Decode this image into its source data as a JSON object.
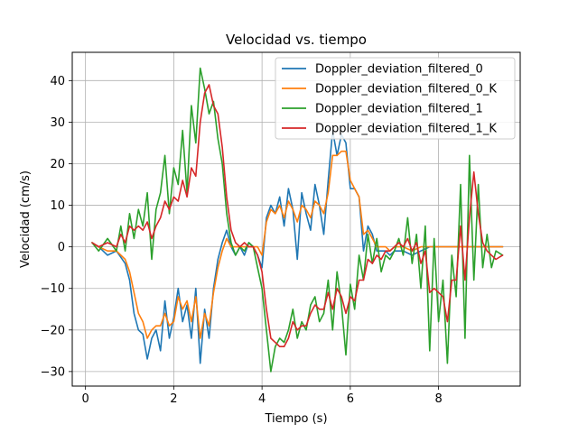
{
  "chart_data": {
    "type": "line",
    "title": "Velocidad vs. tiempo",
    "xlabel": "Tiempo (s)",
    "ylabel": "Velocidad (cm/s)",
    "xlim": [
      -0.3,
      9.85
    ],
    "ylim": [
      -33.5,
      46.8
    ],
    "xticks": [
      0,
      2,
      4,
      6,
      8
    ],
    "yticks": [
      -30,
      -20,
      -10,
      0,
      10,
      20,
      30,
      40
    ],
    "grid": true,
    "legend_position": "top-right",
    "colors": [
      "#1f77b4",
      "#ff7f0e",
      "#2ca02c",
      "#d62728"
    ],
    "series": [
      {
        "name": "Doppler_deviation_filtered_0",
        "color": "#1f77b4",
        "x": [
          0.15,
          0.3,
          0.5,
          0.7,
          0.9,
          1.0,
          1.1,
          1.2,
          1.3,
          1.4,
          1.5,
          1.6,
          1.7,
          1.8,
          1.9,
          2.0,
          2.1,
          2.2,
          2.3,
          2.4,
          2.5,
          2.6,
          2.7,
          2.8,
          2.9,
          3.0,
          3.1,
          3.2,
          3.3,
          3.4,
          3.5,
          3.6,
          3.7,
          3.8,
          3.9,
          4.0,
          4.1,
          4.2,
          4.3,
          4.4,
          4.5,
          4.6,
          4.7,
          4.8,
          4.9,
          5.0,
          5.1,
          5.2,
          5.3,
          5.4,
          5.5,
          5.6,
          5.7,
          5.8,
          5.9,
          6.0,
          6.1,
          6.2,
          6.3,
          6.4,
          6.5,
          6.6,
          6.7,
          6.8,
          6.9,
          7.0,
          7.2,
          7.4,
          7.6,
          7.8,
          8.0,
          8.2,
          8.4,
          8.6,
          8.8,
          9.0,
          9.2,
          9.45
        ],
        "y": [
          1,
          0,
          -2,
          -1,
          -4,
          -8,
          -16,
          -20,
          -21,
          -27,
          -22,
          -20,
          -25,
          -13,
          -22,
          -17,
          -10,
          -18,
          -14,
          -22,
          -10,
          -28,
          -15,
          -22,
          -10,
          -3,
          1,
          4,
          0,
          -2,
          0,
          -2,
          1,
          0,
          -2,
          -5,
          7,
          10,
          8,
          12,
          5,
          14,
          9,
          -3,
          13,
          8,
          4,
          15,
          10,
          3,
          16,
          28,
          22,
          27,
          25,
          14,
          14,
          12,
          -1,
          5,
          3,
          -1,
          -1,
          -1,
          -2,
          -1,
          -1,
          -2,
          -1,
          0,
          0,
          0,
          0,
          0,
          0,
          0,
          0,
          0
        ]
      },
      {
        "name": "Doppler_deviation_filtered_0_K",
        "color": "#ff7f0e",
        "x": [
          0.15,
          0.3,
          0.5,
          0.7,
          0.9,
          1.0,
          1.1,
          1.2,
          1.3,
          1.4,
          1.5,
          1.6,
          1.7,
          1.8,
          1.9,
          2.0,
          2.1,
          2.2,
          2.3,
          2.4,
          2.5,
          2.6,
          2.7,
          2.8,
          2.9,
          3.0,
          3.1,
          3.2,
          3.3,
          3.4,
          3.5,
          3.6,
          3.7,
          3.8,
          3.9,
          4.0,
          4.1,
          4.2,
          4.3,
          4.4,
          4.5,
          4.6,
          4.7,
          4.8,
          4.9,
          5.0,
          5.1,
          5.2,
          5.3,
          5.4,
          5.5,
          5.6,
          5.7,
          5.8,
          5.9,
          6.0,
          6.1,
          6.2,
          6.3,
          6.4,
          6.5,
          6.6,
          6.7,
          6.8,
          6.9,
          7.0,
          7.2,
          7.4,
          7.6,
          7.8,
          8.0,
          8.2,
          8.4,
          8.6,
          8.8,
          9.0,
          9.2,
          9.45
        ],
        "y": [
          1,
          0,
          -1,
          -1,
          -3,
          -6,
          -11,
          -16,
          -18,
          -22,
          -20,
          -19,
          -19,
          -16,
          -19,
          -18,
          -12,
          -15,
          -13,
          -18,
          -12,
          -22,
          -16,
          -19,
          -11,
          -5,
          -1,
          2,
          0,
          0,
          0,
          0,
          0,
          0,
          0,
          -2,
          6,
          9,
          8,
          10,
          7,
          11,
          9,
          6,
          10,
          9,
          7,
          11,
          10,
          8,
          13,
          22,
          22,
          23,
          23,
          16,
          14,
          12,
          3,
          4,
          2,
          0,
          0,
          0,
          -1,
          0,
          0,
          -1,
          0,
          0,
          0,
          0,
          0,
          0,
          0,
          0,
          0,
          0
        ]
      },
      {
        "name": "Doppler_deviation_filtered_1",
        "color": "#2ca02c",
        "x": [
          0.15,
          0.3,
          0.5,
          0.7,
          0.8,
          0.9,
          1.0,
          1.1,
          1.2,
          1.3,
          1.4,
          1.5,
          1.6,
          1.7,
          1.8,
          1.9,
          2.0,
          2.1,
          2.2,
          2.3,
          2.4,
          2.5,
          2.6,
          2.7,
          2.8,
          2.9,
          3.0,
          3.1,
          3.2,
          3.3,
          3.4,
          3.5,
          3.6,
          3.7,
          3.8,
          3.9,
          4.0,
          4.1,
          4.2,
          4.3,
          4.4,
          4.5,
          4.6,
          4.7,
          4.8,
          4.9,
          5.0,
          5.1,
          5.2,
          5.3,
          5.4,
          5.5,
          5.6,
          5.7,
          5.8,
          5.9,
          6.0,
          6.1,
          6.2,
          6.3,
          6.4,
          6.5,
          6.6,
          6.7,
          6.8,
          6.9,
          7.0,
          7.1,
          7.2,
          7.3,
          7.4,
          7.5,
          7.6,
          7.7,
          7.8,
          7.9,
          8.0,
          8.1,
          8.2,
          8.3,
          8.4,
          8.5,
          8.6,
          8.7,
          8.8,
          8.9,
          9.0,
          9.1,
          9.2,
          9.3,
          9.45
        ],
        "y": [
          1,
          -1,
          2,
          -1,
          5,
          -1,
          8,
          2,
          9,
          5,
          13,
          -3,
          9,
          13,
          22,
          8,
          19,
          15,
          28,
          13,
          34,
          25,
          43,
          38,
          32,
          35,
          26,
          20,
          8,
          1,
          -2,
          0,
          -1,
          1,
          0,
          -5,
          -10,
          -20,
          -30,
          -24,
          -22,
          -23,
          -20,
          -15,
          -22,
          -18,
          -20,
          -14,
          -12,
          -18,
          -16,
          -8,
          -20,
          -6,
          -14,
          -26,
          -9,
          -15,
          -2,
          -8,
          3,
          -4,
          2,
          -6,
          -2,
          -3,
          -1,
          2,
          -2,
          7,
          -4,
          3,
          -10,
          5,
          -25,
          2,
          -18,
          -8,
          -28,
          -2,
          -12,
          15,
          -22,
          22,
          -8,
          15,
          -5,
          3,
          -5,
          -1,
          -2
        ]
      },
      {
        "name": "Doppler_deviation_filtered_1_K",
        "color": "#d62728",
        "x": [
          0.15,
          0.3,
          0.5,
          0.7,
          0.8,
          0.9,
          1.0,
          1.1,
          1.2,
          1.3,
          1.4,
          1.5,
          1.6,
          1.7,
          1.8,
          1.9,
          2.0,
          2.1,
          2.2,
          2.3,
          2.4,
          2.5,
          2.6,
          2.7,
          2.8,
          2.9,
          3.0,
          3.1,
          3.2,
          3.3,
          3.4,
          3.5,
          3.6,
          3.7,
          3.8,
          3.9,
          4.0,
          4.1,
          4.2,
          4.3,
          4.4,
          4.5,
          4.6,
          4.7,
          4.8,
          4.9,
          5.0,
          5.1,
          5.2,
          5.3,
          5.4,
          5.5,
          5.6,
          5.7,
          5.8,
          5.9,
          6.0,
          6.1,
          6.2,
          6.3,
          6.4,
          6.5,
          6.6,
          6.7,
          6.8,
          6.9,
          7.0,
          7.1,
          7.2,
          7.3,
          7.4,
          7.5,
          7.6,
          7.7,
          7.8,
          7.9,
          8.0,
          8.1,
          8.2,
          8.3,
          8.4,
          8.5,
          8.6,
          8.7,
          8.8,
          8.9,
          9.0,
          9.1,
          9.2,
          9.3,
          9.45
        ],
        "y": [
          1,
          0,
          1,
          0,
          3,
          1,
          5,
          4,
          5,
          4,
          6,
          2,
          5,
          7,
          11,
          9,
          12,
          11,
          16,
          12,
          19,
          17,
          30,
          37,
          39,
          34,
          32,
          24,
          12,
          4,
          1,
          0,
          1,
          0,
          0,
          -2,
          -6,
          -15,
          -22,
          -23,
          -24,
          -24,
          -22,
          -18,
          -20,
          -19,
          -19,
          -16,
          -14,
          -15,
          -15,
          -11,
          -15,
          -10,
          -12,
          -16,
          -12,
          -13,
          -8,
          -8,
          -3,
          -4,
          -2,
          -3,
          -1,
          -1,
          0,
          1,
          0,
          2,
          -1,
          1,
          -4,
          -1,
          -11,
          -10,
          -11,
          -12,
          -18,
          -8,
          -8,
          5,
          -8,
          7,
          18,
          8,
          1,
          -1,
          -2,
          -3,
          -2
        ]
      }
    ]
  }
}
